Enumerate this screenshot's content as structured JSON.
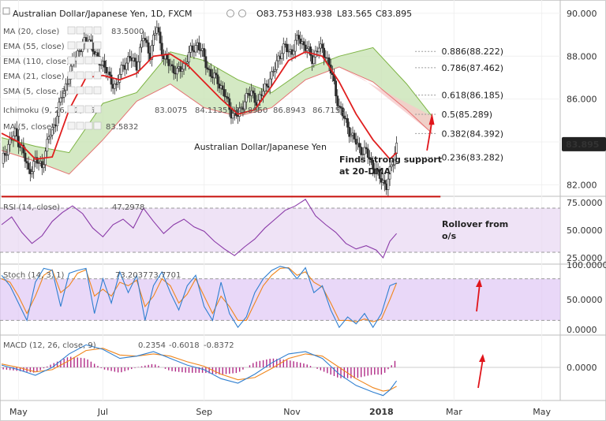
{
  "header": {
    "symbol": "Australian Dollar/Japanese Yen, 1D, FXCM",
    "ohlc": [
      "O83.753",
      "H83.938",
      "L83.565",
      "C83.895"
    ]
  },
  "indicators": {
    "ma20": "MA (20, close)",
    "ma20_val": "83.5000",
    "ema55": "EMA (55, close)",
    "ema110": "EMA (110, close)",
    "ema21": "EMA (21, close)",
    "sma": "SMA (5, close, 2)",
    "ichimoku": "Ichimoku (9, 26, 52, 26)",
    "ichimoku_vals": [
      "83.0075",
      "84.1135",
      "83.8950",
      "86.8943",
      "86.7153"
    ],
    "ma5": "MA (5, close)",
    "ma5_val": "83.5832"
  },
  "annotations": {
    "support": [
      "Finds strong support",
      "at 20-DMA"
    ],
    "rollover": [
      "Rollover from",
      "o/s"
    ],
    "watermark": "Australian Dollar/Japanese Yen"
  },
  "colors": {
    "candle": "#2b2b2b",
    "ma20": "#e01f1f",
    "cloud_bull": "#c9e3b5",
    "cloud_bear": "#f6c9c9",
    "rsi_fill": "#e8d7f2",
    "rsi_line": "#8a3aa8",
    "stoch_fill": "#e0c8f5",
    "stoch_k": "#2f7fd0",
    "stoch_d": "#f0861c",
    "macd_line": "#2f7fd0",
    "signal_line": "#f0861c",
    "hist": "#b02a86",
    "support_line": "#c8100c",
    "arrow": "#e0151b",
    "price_badge": "#222222"
  },
  "chart_data": {
    "type": "candlestick",
    "title": "Australian Dollar/Japanese Yen, 1D, FXCM",
    "y_axis": {
      "ticks": [
        "90.000",
        "88.000",
        "86.000",
        "84.000",
        "82.000"
      ],
      "ylim": [
        81.5,
        90.4
      ]
    },
    "x_axis": {
      "ticks": [
        "May",
        "Jul",
        "Sep",
        "Nov",
        "2018",
        "Mar",
        "May"
      ]
    },
    "last_price": "83.895",
    "fib_levels": [
      {
        "label": "0.886(88.222)",
        "value": 88.222
      },
      {
        "label": "0.786(87.462)",
        "value": 87.462
      },
      {
        "label": "0.618(86.185)",
        "value": 86.185
      },
      {
        "label": "0.5(85.289)",
        "value": 85.289
      },
      {
        "label": "0.382(84.392)",
        "value": 84.392
      },
      {
        "label": "0.236(83.282)",
        "value": 83.282
      }
    ],
    "support_level": 81.45,
    "close_path": [
      [
        0,
        83.0
      ],
      [
        4,
        83.9
      ],
      [
        8,
        84.4
      ],
      [
        12,
        83.7
      ],
      [
        16,
        82.6
      ],
      [
        20,
        83.1
      ],
      [
        24,
        82.9
      ],
      [
        28,
        84.2
      ],
      [
        32,
        85.0
      ],
      [
        36,
        86.2
      ],
      [
        40,
        87.1
      ],
      [
        44,
        88.1
      ],
      [
        48,
        88.5
      ],
      [
        52,
        88.8
      ],
      [
        56,
        87.9
      ],
      [
        60,
        87.7
      ],
      [
        64,
        86.9
      ],
      [
        68,
        86.6
      ],
      [
        72,
        87.6
      ],
      [
        76,
        87.9
      ],
      [
        80,
        87.6
      ],
      [
        84,
        88.9
      ],
      [
        88,
        88.1
      ],
      [
        92,
        89.4
      ],
      [
        96,
        87.9
      ],
      [
        100,
        87.6
      ],
      [
        104,
        87.2
      ],
      [
        108,
        87.6
      ],
      [
        112,
        88.2
      ],
      [
        116,
        88.6
      ],
      [
        120,
        87.9
      ],
      [
        124,
        87.1
      ],
      [
        128,
        86.9
      ],
      [
        132,
        86.2
      ],
      [
        136,
        85.4
      ],
      [
        140,
        85.2
      ],
      [
        144,
        86.0
      ],
      [
        148,
        86.3
      ],
      [
        152,
        85.8
      ],
      [
        156,
        86.6
      ],
      [
        160,
        87.0
      ],
      [
        164,
        88.0
      ],
      [
        168,
        88.4
      ],
      [
        172,
        88.2
      ],
      [
        176,
        88.9
      ],
      [
        180,
        88.4
      ],
      [
        184,
        87.9
      ],
      [
        188,
        88.4
      ],
      [
        192,
        88.1
      ],
      [
        196,
        87.0
      ],
      [
        200,
        85.6
      ],
      [
        204,
        84.9
      ],
      [
        208,
        84.2
      ],
      [
        212,
        83.7
      ],
      [
        216,
        83.5
      ],
      [
        220,
        82.9
      ],
      [
        224,
        82.3
      ],
      [
        228,
        82.0
      ],
      [
        232,
        83.1
      ],
      [
        234,
        83.9
      ]
    ],
    "ma20_path": [
      [
        0,
        84.4
      ],
      [
        10,
        84.0
      ],
      [
        20,
        83.2
      ],
      [
        30,
        83.3
      ],
      [
        40,
        85.5
      ],
      [
        50,
        87.0
      ],
      [
        60,
        87.1
      ],
      [
        70,
        86.9
      ],
      [
        80,
        87.2
      ],
      [
        90,
        88.0
      ],
      [
        100,
        88.1
      ],
      [
        110,
        87.6
      ],
      [
        120,
        86.8
      ],
      [
        130,
        86.0
      ],
      [
        140,
        85.3
      ],
      [
        150,
        85.5
      ],
      [
        160,
        86.6
      ],
      [
        170,
        87.8
      ],
      [
        180,
        88.2
      ],
      [
        190,
        88.0
      ],
      [
        200,
        86.8
      ],
      [
        210,
        85.3
      ],
      [
        220,
        84.1
      ],
      [
        230,
        83.2
      ],
      [
        234,
        83.5
      ]
    ],
    "cloud_top": [
      [
        0,
        84.2
      ],
      [
        20,
        83.8
      ],
      [
        40,
        83.5
      ],
      [
        60,
        85.8
      ],
      [
        80,
        86.3
      ],
      [
        100,
        88.2
      ],
      [
        120,
        87.8
      ],
      [
        140,
        86.9
      ],
      [
        160,
        86.3
      ],
      [
        180,
        87.4
      ],
      [
        200,
        88.0
      ],
      [
        220,
        88.4
      ],
      [
        240,
        86.7
      ],
      [
        255,
        85.2
      ]
    ],
    "cloud_bottom": [
      [
        0,
        83.6
      ],
      [
        20,
        83.1
      ],
      [
        40,
        82.5
      ],
      [
        60,
        84.1
      ],
      [
        80,
        85.9
      ],
      [
        100,
        86.7
      ],
      [
        120,
        85.6
      ],
      [
        140,
        85.2
      ],
      [
        160,
        85.6
      ],
      [
        180,
        86.9
      ],
      [
        200,
        87.5
      ],
      [
        220,
        86.8
      ],
      [
        240,
        85.5
      ],
      [
        255,
        84.4
      ]
    ],
    "rsi": {
      "label": "RSI (14, close)",
      "value_label": "47.2978",
      "ticks": [
        "75.0000",
        "50.0000",
        "25.0000"
      ],
      "ylim": [
        20,
        80
      ],
      "values": [
        [
          0,
          55
        ],
        [
          6,
          62
        ],
        [
          12,
          48
        ],
        [
          18,
          38
        ],
        [
          24,
          45
        ],
        [
          30,
          58
        ],
        [
          36,
          66
        ],
        [
          42,
          72
        ],
        [
          48,
          65
        ],
        [
          54,
          52
        ],
        [
          60,
          44
        ],
        [
          66,
          55
        ],
        [
          72,
          60
        ],
        [
          78,
          52
        ],
        [
          84,
          70
        ],
        [
          90,
          58
        ],
        [
          96,
          47
        ],
        [
          102,
          55
        ],
        [
          108,
          60
        ],
        [
          114,
          53
        ],
        [
          120,
          49
        ],
        [
          126,
          40
        ],
        [
          132,
          33
        ],
        [
          138,
          27
        ],
        [
          144,
          35
        ],
        [
          150,
          42
        ],
        [
          156,
          52
        ],
        [
          162,
          60
        ],
        [
          168,
          68
        ],
        [
          174,
          72
        ],
        [
          180,
          78
        ],
        [
          186,
          63
        ],
        [
          192,
          55
        ],
        [
          198,
          48
        ],
        [
          204,
          38
        ],
        [
          210,
          33
        ],
        [
          216,
          36
        ],
        [
          222,
          32
        ],
        [
          226,
          25
        ],
        [
          230,
          40
        ],
        [
          234,
          47
        ]
      ]
    },
    "stoch": {
      "label": "Stoch (14, 3, 1)",
      "value_labels": [
        "73.2037",
        "73.7701"
      ],
      "ticks": [
        "100.0000",
        "50.0000",
        "0.0000"
      ],
      "ylim": [
        0,
        100
      ],
      "k": [
        [
          0,
          85
        ],
        [
          5,
          70
        ],
        [
          10,
          45
        ],
        [
          15,
          20
        ],
        [
          20,
          75
        ],
        [
          25,
          95
        ],
        [
          30,
          92
        ],
        [
          35,
          40
        ],
        [
          40,
          88
        ],
        [
          45,
          92
        ],
        [
          50,
          95
        ],
        [
          55,
          30
        ],
        [
          60,
          80
        ],
        [
          65,
          45
        ],
        [
          70,
          90
        ],
        [
          75,
          60
        ],
        [
          80,
          85
        ],
        [
          85,
          20
        ],
        [
          90,
          70
        ],
        [
          95,
          90
        ],
        [
          100,
          60
        ],
        [
          105,
          35
        ],
        [
          110,
          70
        ],
        [
          115,
          85
        ],
        [
          120,
          40
        ],
        [
          125,
          20
        ],
        [
          130,
          75
        ],
        [
          135,
          30
        ],
        [
          140,
          10
        ],
        [
          145,
          25
        ],
        [
          150,
          60
        ],
        [
          155,
          80
        ],
        [
          160,
          92
        ],
        [
          165,
          98
        ],
        [
          170,
          95
        ],
        [
          175,
          80
        ],
        [
          180,
          96
        ],
        [
          185,
          60
        ],
        [
          190,
          70
        ],
        [
          195,
          35
        ],
        [
          200,
          10
        ],
        [
          205,
          25
        ],
        [
          210,
          15
        ],
        [
          215,
          30
        ],
        [
          220,
          10
        ],
        [
          225,
          30
        ],
        [
          230,
          70
        ],
        [
          234,
          74
        ]
      ],
      "d": [
        [
          0,
          80
        ],
        [
          5,
          75
        ],
        [
          10,
          55
        ],
        [
          15,
          30
        ],
        [
          20,
          55
        ],
        [
          25,
          85
        ],
        [
          30,
          93
        ],
        [
          35,
          60
        ],
        [
          40,
          70
        ],
        [
          45,
          88
        ],
        [
          50,
          93
        ],
        [
          55,
          55
        ],
        [
          60,
          65
        ],
        [
          65,
          55
        ],
        [
          70,
          75
        ],
        [
          75,
          70
        ],
        [
          80,
          78
        ],
        [
          85,
          40
        ],
        [
          90,
          55
        ],
        [
          95,
          80
        ],
        [
          100,
          70
        ],
        [
          105,
          45
        ],
        [
          110,
          58
        ],
        [
          115,
          80
        ],
        [
          120,
          55
        ],
        [
          125,
          30
        ],
        [
          130,
          55
        ],
        [
          135,
          40
        ],
        [
          140,
          20
        ],
        [
          145,
          20
        ],
        [
          150,
          45
        ],
        [
          155,
          70
        ],
        [
          160,
          85
        ],
        [
          165,
          95
        ],
        [
          170,
          96
        ],
        [
          175,
          85
        ],
        [
          180,
          90
        ],
        [
          185,
          75
        ],
        [
          190,
          68
        ],
        [
          195,
          45
        ],
        [
          200,
          20
        ],
        [
          205,
          20
        ],
        [
          210,
          18
        ],
        [
          215,
          22
        ],
        [
          220,
          18
        ],
        [
          225,
          22
        ],
        [
          230,
          50
        ],
        [
          234,
          74
        ]
      ]
    },
    "macd": {
      "label": "MACD (12, 26, close, 9)",
      "value_labels": [
        "0.2354",
        "-0.6018",
        "-0.8372"
      ],
      "ticks": [
        "0.0000"
      ],
      "ylim": [
        -1.4,
        1.4
      ],
      "macd": [
        [
          0,
          0.1
        ],
        [
          10,
          -0.1
        ],
        [
          20,
          -0.35
        ],
        [
          30,
          0.0
        ],
        [
          40,
          0.6
        ],
        [
          50,
          1.0
        ],
        [
          60,
          0.8
        ],
        [
          70,
          0.4
        ],
        [
          80,
          0.5
        ],
        [
          90,
          0.7
        ],
        [
          100,
          0.4
        ],
        [
          110,
          0.1
        ],
        [
          120,
          -0.1
        ],
        [
          130,
          -0.5
        ],
        [
          140,
          -0.7
        ],
        [
          150,
          -0.3
        ],
        [
          160,
          0.2
        ],
        [
          170,
          0.6
        ],
        [
          180,
          0.7
        ],
        [
          190,
          0.4
        ],
        [
          200,
          -0.3
        ],
        [
          210,
          -0.8
        ],
        [
          220,
          -1.1
        ],
        [
          226,
          -1.25
        ],
        [
          230,
          -1.0
        ],
        [
          234,
          -0.6
        ]
      ],
      "signal": [
        [
          0,
          0.15
        ],
        [
          10,
          0.0
        ],
        [
          20,
          -0.2
        ],
        [
          30,
          -0.1
        ],
        [
          40,
          0.3
        ],
        [
          50,
          0.75
        ],
        [
          60,
          0.85
        ],
        [
          70,
          0.55
        ],
        [
          80,
          0.5
        ],
        [
          90,
          0.6
        ],
        [
          100,
          0.5
        ],
        [
          110,
          0.25
        ],
        [
          120,
          0.05
        ],
        [
          130,
          -0.3
        ],
        [
          140,
          -0.55
        ],
        [
          150,
          -0.45
        ],
        [
          160,
          -0.05
        ],
        [
          170,
          0.4
        ],
        [
          180,
          0.6
        ],
        [
          190,
          0.5
        ],
        [
          200,
          0.0
        ],
        [
          210,
          -0.5
        ],
        [
          220,
          -0.9
        ],
        [
          226,
          -1.05
        ],
        [
          230,
          -1.0
        ],
        [
          234,
          -0.84
        ]
      ]
    }
  }
}
